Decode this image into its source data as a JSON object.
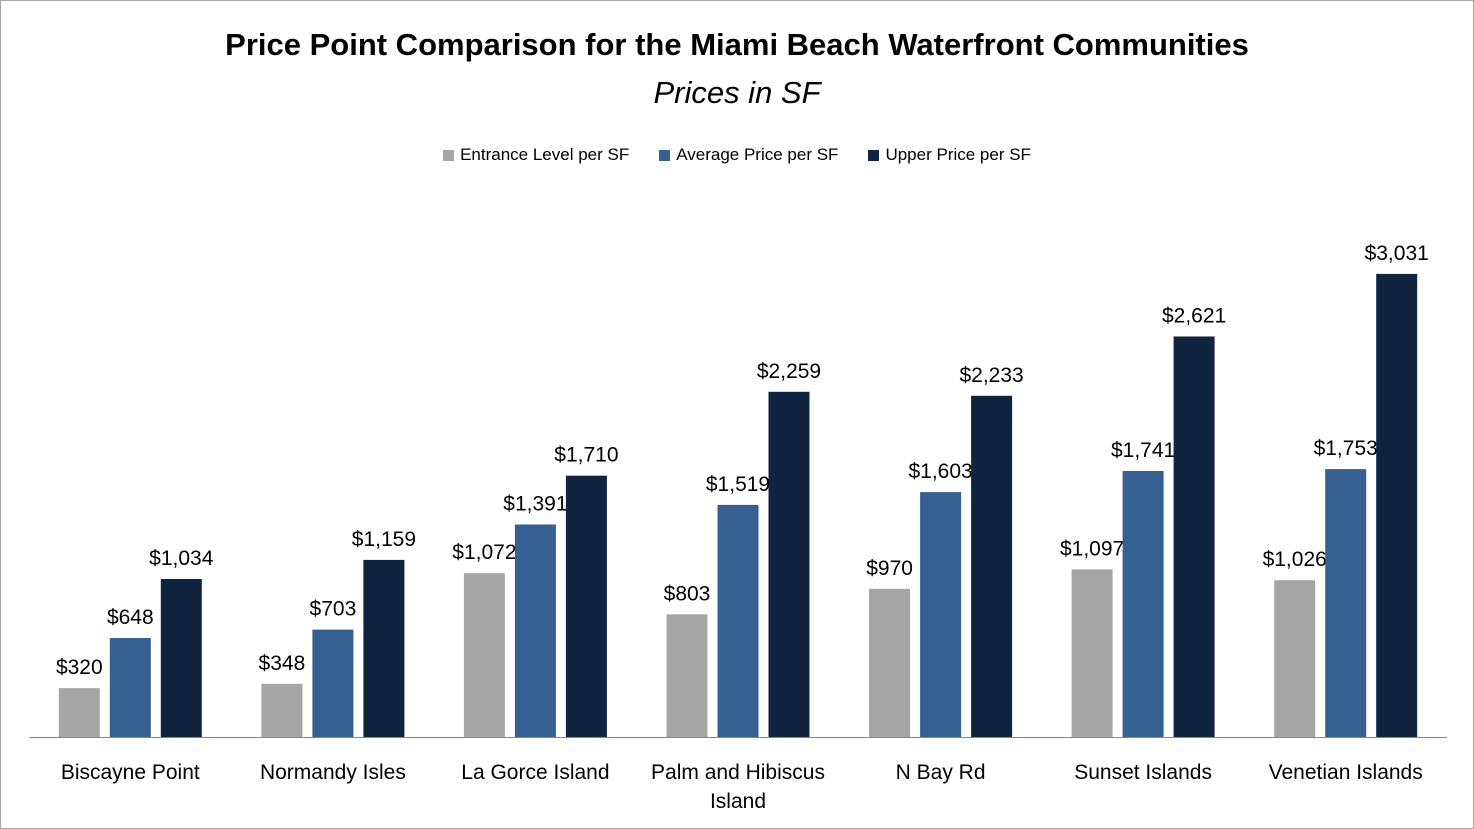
{
  "chart_data": {
    "type": "bar",
    "title": "Price Point Comparison for the Miami Beach Waterfront Communities",
    "subtitle": "Prices in SF",
    "categories": [
      "Biscayne Point",
      "Normandy Isles",
      "La Gorce Island",
      "Palm and Hibiscus Island",
      "N Bay Rd",
      "Sunset Islands",
      "Venetian Islands"
    ],
    "category_lines": [
      [
        "Biscayne Point"
      ],
      [
        "Normandy Isles"
      ],
      [
        "La Gorce Island"
      ],
      [
        "Palm and Hibiscus",
        "Island"
      ],
      [
        "N Bay Rd"
      ],
      [
        "Sunset Islands"
      ],
      [
        "Venetian Islands"
      ]
    ],
    "series": [
      {
        "name": "Entrance Level per SF",
        "color": "#a5a5a5",
        "values": [
          320,
          348,
          1072,
          803,
          970,
          1097,
          1026
        ],
        "labels": [
          "$320",
          "$348",
          "$1,072",
          "$803",
          "$970",
          "$1,097",
          "$1,026"
        ]
      },
      {
        "name": "Average Price per SF",
        "color": "#376092",
        "values": [
          648,
          703,
          1391,
          1519,
          1603,
          1741,
          1753
        ],
        "labels": [
          "$648",
          "$703",
          "$1,391",
          "$1,519",
          "$1,603",
          "$1,741",
          "$1,753"
        ]
      },
      {
        "name": "Upper Price per SF",
        "color": "#10243f",
        "values": [
          1034,
          1159,
          1710,
          2259,
          2233,
          2621,
          3031
        ],
        "labels": [
          "$1,034",
          "$1,159",
          "$1,710",
          "$2,259",
          "$2,233",
          "$2,621",
          "$3,031"
        ]
      }
    ],
    "legend_position": "top",
    "grid": false,
    "ylim": [
      0,
      3500
    ]
  }
}
